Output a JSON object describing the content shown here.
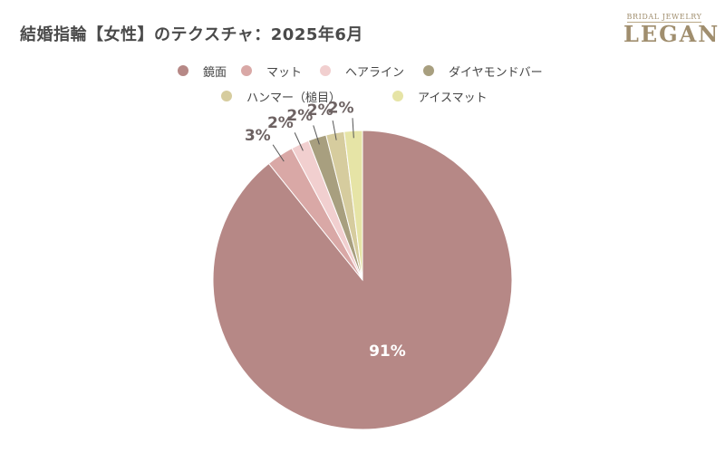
{
  "title": "結婚指輪【女性】のテクスチャ：2025年6月",
  "logo": {
    "sub": "BRIDAL JEWELRY",
    "main": "LEGAN"
  },
  "colors": {
    "title": "#4a4a4a",
    "label_dark": "#6d6262",
    "label_light": "#ffffff"
  },
  "chart_data": {
    "type": "pie",
    "title": "結婚指輪【女性】のテクスチャ：2025年6月",
    "legend_position": "top",
    "slices": [
      {
        "label": "鏡面",
        "value": 91,
        "display": "91%",
        "color": "#b68886"
      },
      {
        "label": "マット",
        "value": 3,
        "display": "3%",
        "color": "#d9a8a6"
      },
      {
        "label": "ヘアライン",
        "value": 2,
        "display": "2%",
        "color": "#f1cfcf"
      },
      {
        "label": "ダイヤモンドバー",
        "value": 2,
        "display": "2%",
        "color": "#a89f7f"
      },
      {
        "label": "ハンマー（槌目）",
        "value": 2,
        "display": "2%",
        "color": "#d6cc9e"
      },
      {
        "label": "アイスマット",
        "value": 2,
        "display": "2%",
        "color": "#e6e4a6"
      }
    ]
  }
}
